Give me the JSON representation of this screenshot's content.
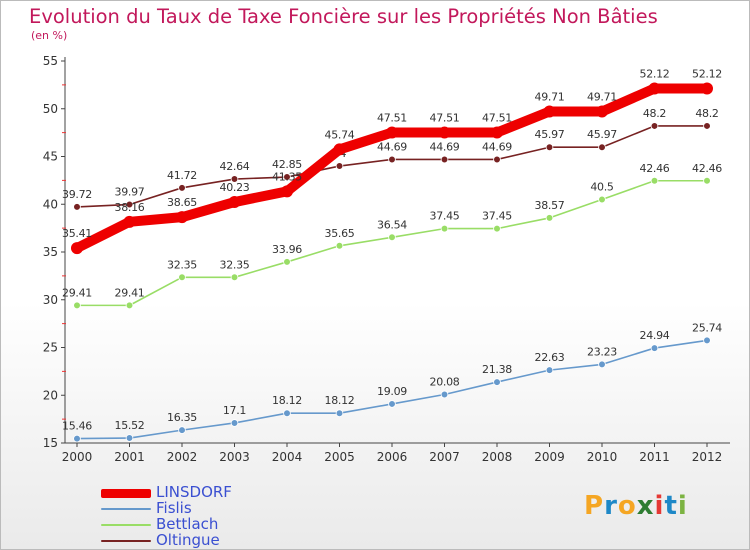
{
  "title": "Evolution du Taux de Taxe Foncière sur les Propriétés Non Bâties",
  "unit_label": "(en %)",
  "logo": {
    "letters": [
      "P",
      "r",
      "o",
      "x",
      "i",
      "t",
      "i"
    ],
    "colors": [
      "#f5a623",
      "#1e88c7",
      "#f5a623",
      "#2e7d32",
      "#e53935",
      "#1e88c7",
      "#7cb342"
    ]
  },
  "chart_data": {
    "type": "line",
    "x": [
      "2000",
      "2001",
      "2002",
      "2003",
      "2004",
      "2005",
      "2006",
      "2007",
      "2008",
      "2009",
      "2010",
      "2011",
      "2012"
    ],
    "ylim": [
      15,
      55
    ],
    "yticks": [
      15,
      20,
      25,
      30,
      35,
      40,
      45,
      50,
      55
    ],
    "grid": false,
    "legend_position": "bottom-left",
    "series": [
      {
        "name": "LINSDORF",
        "color": "#ee0000",
        "values": [
          35.41,
          38.16,
          38.65,
          40.23,
          41.35,
          45.74,
          47.51,
          47.51,
          47.51,
          49.71,
          49.71,
          52.12,
          52.12
        ],
        "labels": [
          "35.41",
          "38.16",
          "38.65",
          "40.23",
          "41.35",
          "45.74",
          "47.51",
          "47.51",
          "47.51",
          "49.71",
          "49.71",
          "52.12",
          "52.12"
        ]
      },
      {
        "name": "Fislis",
        "color": "#6699cc",
        "values": [
          15.46,
          15.52,
          16.35,
          17.1,
          18.12,
          18.12,
          19.09,
          20.08,
          21.38,
          22.63,
          23.23,
          24.94,
          25.74
        ],
        "labels": [
          "15.46",
          "15.52",
          "16.35",
          "17.1",
          "18.12",
          "18.12",
          "19.09",
          "20.08",
          "21.38",
          "22.63",
          "23.23",
          "24.94",
          "25.74"
        ]
      },
      {
        "name": "Bettlach",
        "color": "#99dd66",
        "values": [
          29.41,
          29.41,
          32.35,
          32.35,
          33.96,
          35.65,
          36.54,
          37.45,
          37.45,
          38.57,
          40.5,
          42.46,
          42.46
        ],
        "labels": [
          "29.41",
          "29.41",
          "32.35",
          "32.35",
          "33.96",
          "35.65",
          "36.54",
          "37.45",
          "37.45",
          "38.57",
          "40.5",
          "42.46",
          "42.46"
        ]
      },
      {
        "name": "Oltingue",
        "color": "#772222",
        "values": [
          39.72,
          39.97,
          41.72,
          42.64,
          42.85,
          44,
          44.69,
          44.69,
          44.69,
          45.97,
          45.97,
          48.2,
          48.2
        ],
        "labels": [
          "39.72",
          "39.97",
          "41.72",
          "42.64",
          "42.85",
          "44",
          "44.69",
          "44.69",
          "44.69",
          "45.97",
          "45.97",
          "48.2",
          "48.2"
        ]
      }
    ]
  }
}
